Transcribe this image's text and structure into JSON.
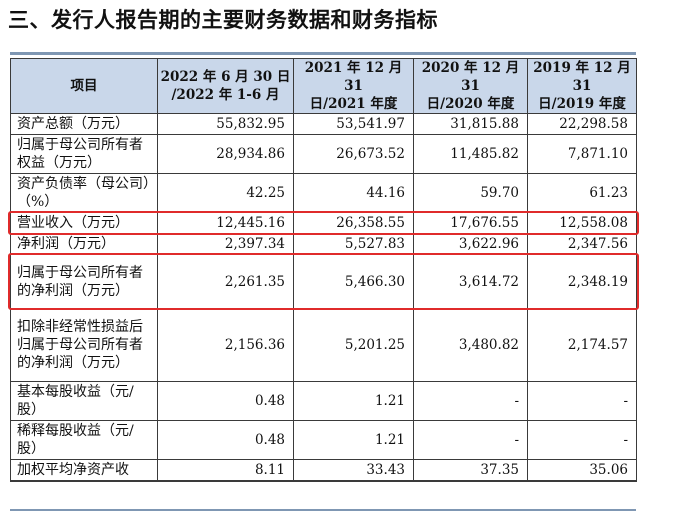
{
  "section_title": "三、发行人报告期的主要财务数据和财务指标",
  "table": {
    "headers": [
      "项目",
      "2022 年 6 月 30 日/2022 年 1-6 月",
      "2021 年 12 月 31 日/2021 年度",
      "2020 年 12 月 31 日/2020 年度",
      "2019 年 12 月 31 日/2019 年度"
    ],
    "header_lines": [
      [
        "项目"
      ],
      [
        "2022 年 6 月 30 日",
        "/2022 年 1-6 月"
      ],
      [
        "2021 年 12 月 31",
        "日/2021 年度"
      ],
      [
        "2020 年 12 月 31",
        "日/2020 年度"
      ],
      [
        "2019 年 12 月 31",
        "日/2019 年度"
      ]
    ],
    "rows": [
      {
        "label": "资产总额（万元）",
        "values": [
          "55,832.95",
          "53,541.97",
          "31,815.88",
          "22,298.58"
        ],
        "highlight": false
      },
      {
        "label": "归属于母公司所有者权益（万元）",
        "values": [
          "28,934.86",
          "26,673.52",
          "11,485.82",
          "7,871.10"
        ],
        "highlight": false
      },
      {
        "label": "资产负债率（母公司）（%）",
        "values": [
          "42.25",
          "44.16",
          "59.70",
          "61.23"
        ],
        "highlight": false
      },
      {
        "label": "营业收入（万元）",
        "values": [
          "12,445.16",
          "26,358.55",
          "17,676.55",
          "12,558.08"
        ],
        "highlight": true
      },
      {
        "label": "净利润（万元）",
        "values": [
          "2,397.34",
          "5,527.83",
          "3,622.96",
          "2,347.56"
        ],
        "highlight": false
      },
      {
        "label": "归属于母公司所有者的净利润（万元）",
        "values": [
          "2,261.35",
          "5,466.30",
          "3,614.72",
          "2,348.19"
        ],
        "highlight": true
      },
      {
        "label": "扣除非经常性损益后归属于母公司所有者的净利润（万元）",
        "values": [
          "2,156.36",
          "5,201.25",
          "3,480.82",
          "2,174.57"
        ],
        "highlight": false
      },
      {
        "label": "基本每股收益（元/股）",
        "values": [
          "0.48",
          "1.21",
          "-",
          "-"
        ],
        "highlight": false
      },
      {
        "label": "稀释每股收益（元/股）",
        "values": [
          "0.48",
          "1.21",
          "-",
          "-"
        ],
        "highlight": false
      },
      {
        "label": "加权平均净资产收",
        "values": [
          "8.11",
          "33.43",
          "37.35",
          "35.06"
        ],
        "highlight": false
      }
    ]
  },
  "colors": {
    "header_bg": "#c9d7ea",
    "highlight_border": "#e02b2b",
    "rule": "#7f97b3"
  }
}
